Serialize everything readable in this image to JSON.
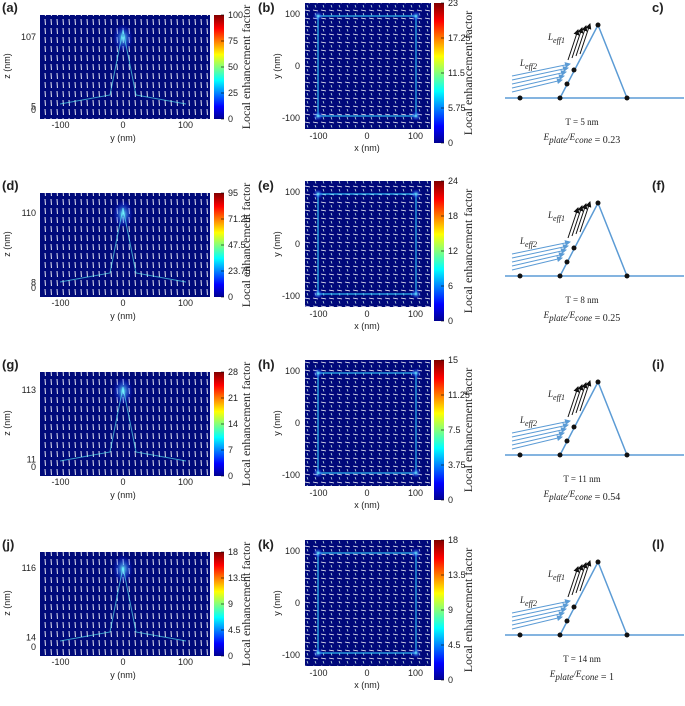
{
  "rows": [
    {
      "field_side": {
        "label": "(a)",
        "y_label": "z (nm)",
        "x_label": "y (nm)",
        "y_ticks": [
          107,
          5,
          0
        ],
        "x_ticks": [
          -100,
          0,
          100
        ],
        "colorbar_ticks": [
          100,
          75,
          50,
          25,
          0
        ],
        "colorbar_label": "Local enhancement factor"
      },
      "field_top": {
        "label": "(b)",
        "y_label": "y (nm)",
        "x_label": "x (nm)",
        "y_ticks": [
          100,
          0,
          -100
        ],
        "x_ticks": [
          -100,
          0,
          100
        ],
        "colorbar_ticks": [
          23,
          17.25,
          11.5,
          5.75,
          0
        ],
        "colorbar_label": "Local enhancement factor"
      },
      "scheme": {
        "label": "c)",
        "l_upper": "L",
        "l_upper_sub": "eff1",
        "l_lower": "L",
        "l_lower_sub": "eff2",
        "thickness": "T = 5 nm",
        "num": "E",
        "num_sub": "plate",
        "den": "/E",
        "den_sub": "cone",
        "ratio": " = 0.23"
      }
    },
    {
      "field_side": {
        "label": "(d)",
        "y_label": "z (nm)",
        "x_label": "y (nm)",
        "y_ticks": [
          110,
          8,
          0
        ],
        "x_ticks": [
          -100,
          0,
          100
        ],
        "colorbar_ticks": [
          95,
          71.25,
          47.5,
          23.75,
          0
        ],
        "colorbar_label": "Local enhancement factor"
      },
      "field_top": {
        "label": "(e)",
        "y_label": "y (nm)",
        "x_label": "x (nm)",
        "y_ticks": [
          100,
          0,
          -100
        ],
        "x_ticks": [
          -100,
          0,
          100
        ],
        "colorbar_ticks": [
          24,
          18,
          12,
          6,
          0
        ],
        "colorbar_label": "Local enhancement factor"
      },
      "scheme": {
        "label": "(f)",
        "l_upper": "L",
        "l_upper_sub": "eff1",
        "l_lower": "L",
        "l_lower_sub": "eff2",
        "thickness": "T = 8 nm",
        "num": "E",
        "num_sub": "plate",
        "den": "/E",
        "den_sub": "cone",
        "ratio": " = 0.25"
      }
    },
    {
      "field_side": {
        "label": "(g)",
        "y_label": "z (nm)",
        "x_label": "y (nm)",
        "y_ticks": [
          113,
          11,
          0
        ],
        "x_ticks": [
          -100,
          0,
          100
        ],
        "colorbar_ticks": [
          28,
          21,
          14,
          7,
          0
        ],
        "colorbar_label": "Local enhancement factor"
      },
      "field_top": {
        "label": "(h)",
        "y_label": "y (nm)",
        "x_label": "x (nm)",
        "y_ticks": [
          100,
          0,
          -100
        ],
        "x_ticks": [
          -100,
          0,
          100
        ],
        "colorbar_ticks": [
          15,
          11.25,
          7.5,
          3.75,
          0
        ],
        "colorbar_label": "Local enhancement factor"
      },
      "scheme": {
        "label": "(i)",
        "l_upper": "L",
        "l_upper_sub": "eff1",
        "l_lower": "L",
        "l_lower_sub": "eff2",
        "thickness": "T = 11 nm",
        "num": "E",
        "num_sub": "plate",
        "den": "/E",
        "den_sub": "cone",
        "ratio": " = 0.54"
      }
    },
    {
      "field_side": {
        "label": "(j)",
        "y_label": "z (nm)",
        "x_label": "y (nm)",
        "y_ticks": [
          116,
          14,
          0
        ],
        "x_ticks": [
          -100,
          0,
          100
        ],
        "colorbar_ticks": [
          18,
          13.5,
          9,
          4.5,
          0
        ],
        "colorbar_label": "Local enhancement factor"
      },
      "field_top": {
        "label": "(k)",
        "y_label": "y (nm)",
        "x_label": "x (nm)",
        "y_ticks": [
          100,
          0,
          -100
        ],
        "x_ticks": [
          -100,
          0,
          100
        ],
        "colorbar_ticks": [
          18,
          13.5,
          9,
          4.5,
          0
        ],
        "colorbar_label": "Local enhancement factor"
      },
      "scheme": {
        "label": "(l)",
        "l_upper": "L",
        "l_upper_sub": "eff1",
        "l_lower": "L",
        "l_lower_sub": "eff2",
        "thickness": "T = 14 nm",
        "num": "E",
        "num_sub": "plate",
        "den": "/E",
        "den_sub": "cone",
        "ratio": " = 1"
      }
    }
  ]
}
